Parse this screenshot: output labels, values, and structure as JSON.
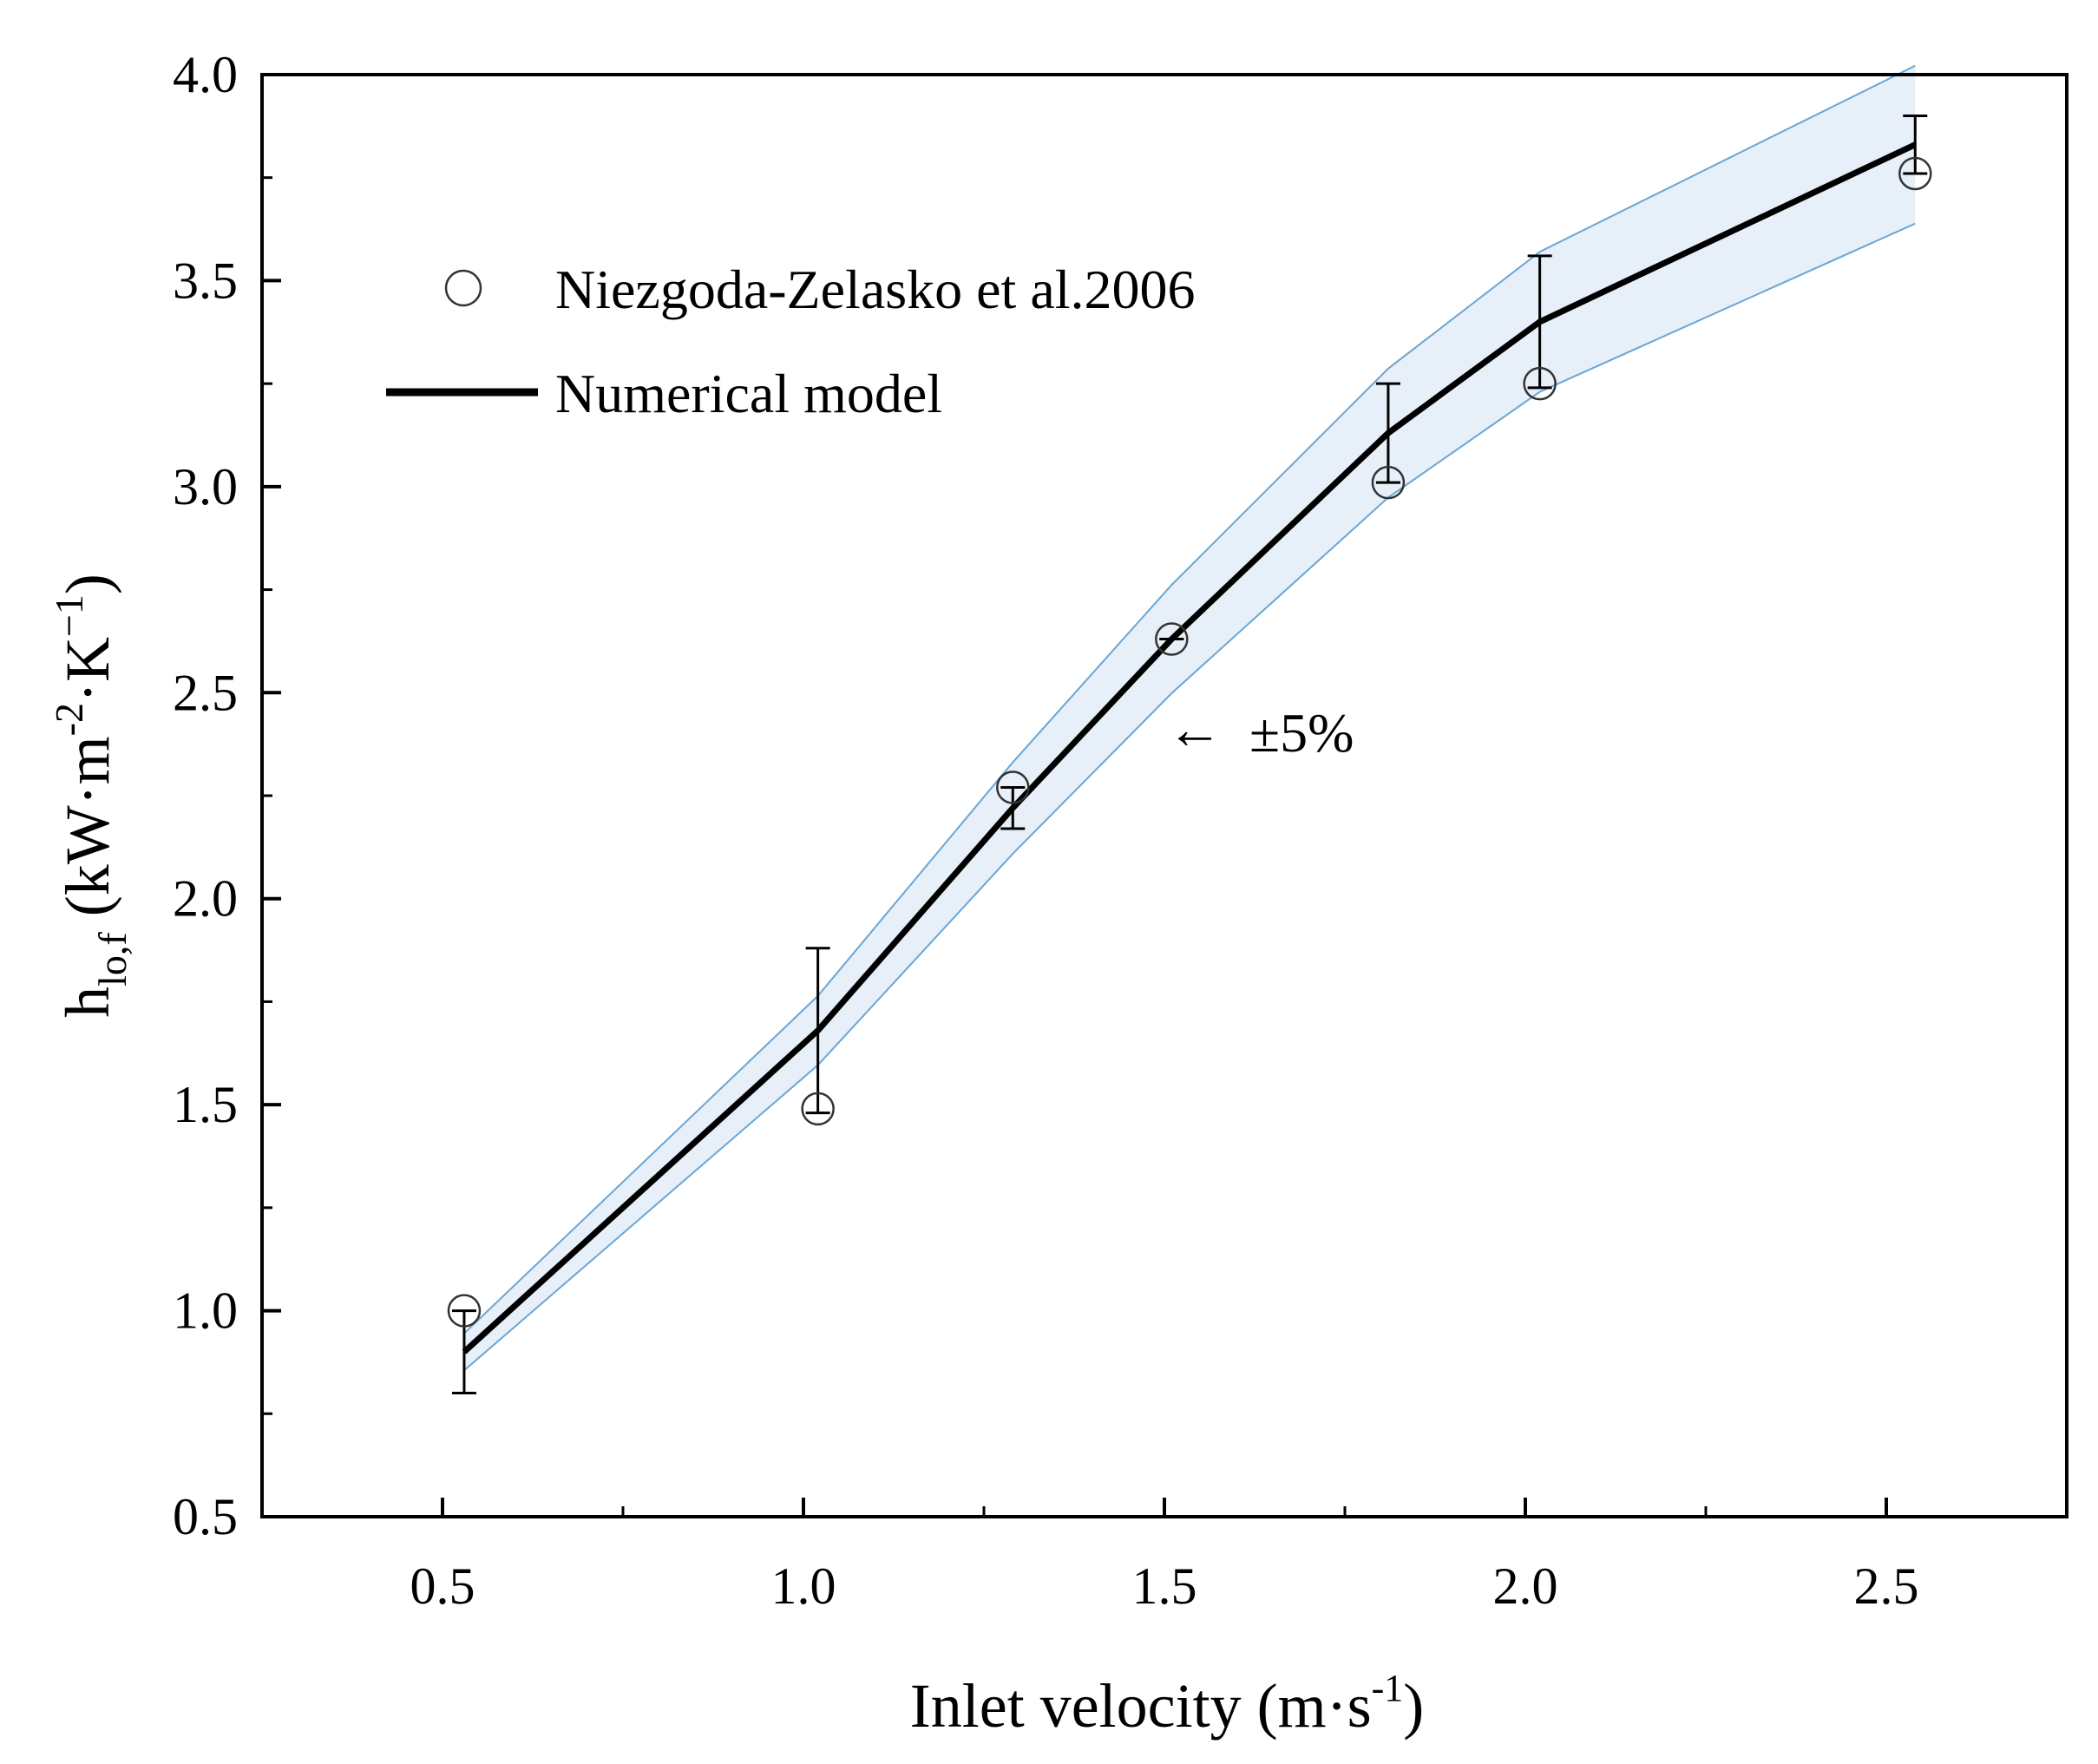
{
  "chart_data": {
    "type": "line",
    "title": "",
    "xlabel_main": "Inlet velocity (m·s",
    "xlabel_sup": "-1",
    "xlabel_close": ")",
    "ylabel_h": "h",
    "ylabel_sub": "lo,f",
    "ylabel_mid1": " (kW·m",
    "ylabel_sup1": "-2",
    "ylabel_mid2": "·K",
    "ylabel_sup2": "−1",
    "ylabel_close": ")",
    "xlim": [
      0.25,
      2.75
    ],
    "ylim": [
      0.5,
      4.0
    ],
    "x_ticks": [
      0.5,
      1.0,
      1.5,
      2.0,
      2.5
    ],
    "x_tick_labels": [
      "0.5",
      "1.0",
      "1.5",
      "2.0",
      "2.5"
    ],
    "x_minor_ticks": [
      0.75,
      1.25,
      1.75,
      2.25
    ],
    "y_ticks": [
      0.5,
      1.0,
      1.5,
      2.0,
      2.5,
      3.0,
      3.5,
      4.0
    ],
    "y_tick_labels": [
      "0.5",
      "1.0",
      "1.5",
      "2.0",
      "2.5",
      "3.0",
      "3.5",
      "4.0"
    ],
    "y_minor_ticks": [
      0.75,
      1.25,
      1.75,
      2.25,
      2.75,
      3.25,
      3.75
    ],
    "band_label": "±5%",
    "band_arrow": "←",
    "band_fraction": 0.05,
    "colors": {
      "band_fill": "#e7eff8",
      "band_edge": "#6aa6d4",
      "line": "#000000",
      "marker": "#333333"
    },
    "legend": {
      "position": "top-left",
      "entries": [
        {
          "label": "Niezgoda-Zelasko et al.2006",
          "marker": "open-circle"
        },
        {
          "label": "Numerical model",
          "marker": "line"
        }
      ]
    },
    "series": [
      {
        "name": "Numerical model",
        "kind": "line",
        "x": [
          0.53,
          1.02,
          1.29,
          1.51,
          1.81,
          2.02,
          2.54
        ],
        "y": [
          0.9,
          1.68,
          2.22,
          2.63,
          3.13,
          3.4,
          3.83
        ],
        "err": [
          0.1,
          0.2,
          0.05,
          0.0,
          0.12,
          0.16,
          0.07
        ]
      },
      {
        "name": "Niezgoda-Zelasko et al.2006",
        "kind": "scatter",
        "x": [
          0.53,
          1.02,
          1.29,
          1.51,
          1.81,
          2.02,
          2.54
        ],
        "y": [
          1.0,
          1.49,
          2.27,
          2.63,
          3.01,
          3.25,
          3.76
        ]
      }
    ]
  }
}
